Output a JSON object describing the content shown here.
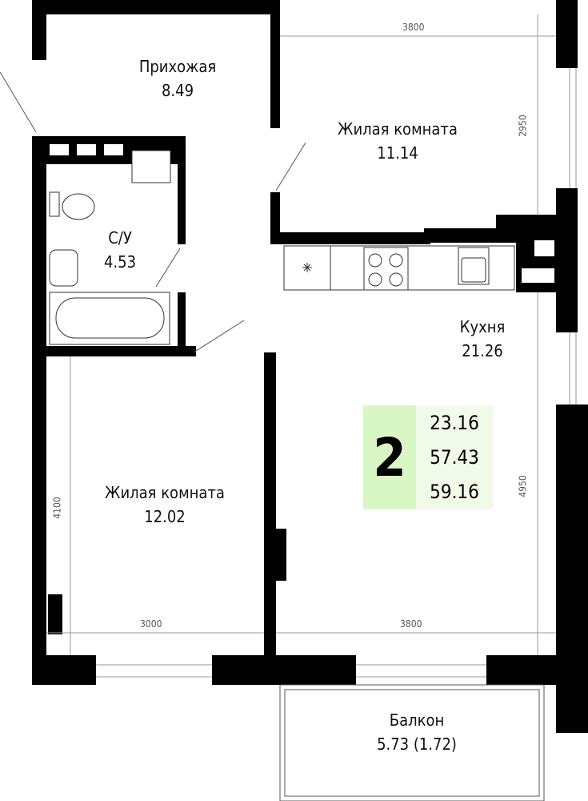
{
  "rooms": {
    "hallway": {
      "name": "Прихожая",
      "area": "8.49"
    },
    "living1": {
      "name": "Жилая комната",
      "area": "11.14"
    },
    "bathroom": {
      "name": "С/У",
      "area": "4.53"
    },
    "kitchen": {
      "name": "Кухня",
      "area": "21.26"
    },
    "living2": {
      "name": "Жилая комната",
      "area": "12.02"
    },
    "balcony": {
      "name": "Балкон",
      "area": "5.73 (1.72)"
    }
  },
  "dimensions": {
    "top": "3800",
    "right_top": "2950",
    "right_bottom": "4950",
    "left": "4100",
    "bottom_left": "3000",
    "bottom_right": "3800"
  },
  "summary": {
    "rooms_count": "2",
    "living_area": "23.16",
    "total_area": "57.43",
    "total_with_balcony": "59.16",
    "colors": {
      "count_bg": "#d9f7c4",
      "values_bg": "#f1fbe9"
    }
  }
}
